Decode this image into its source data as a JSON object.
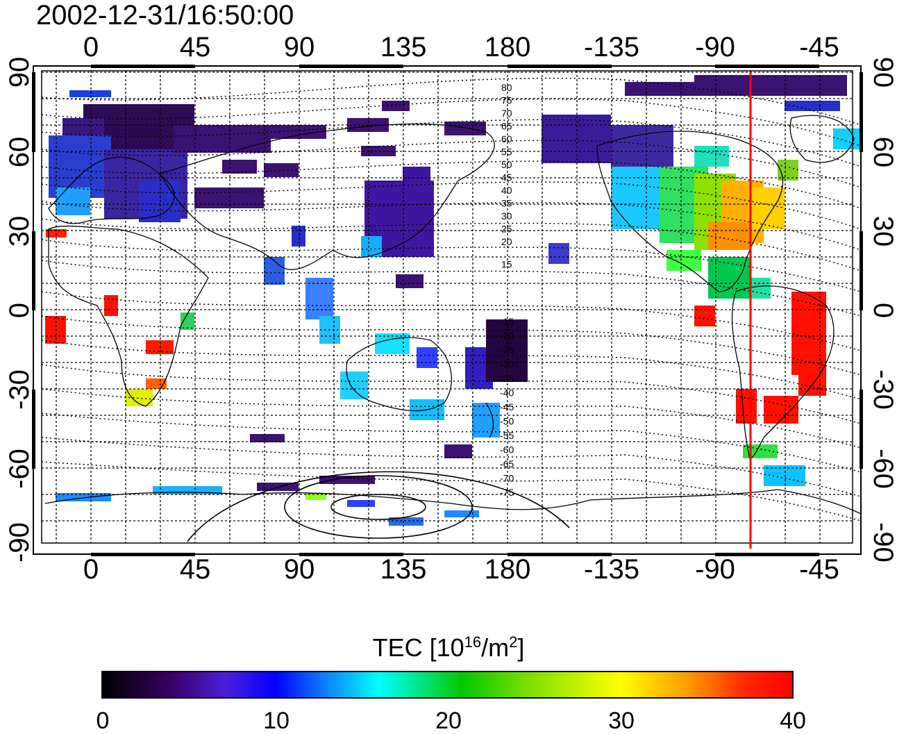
{
  "timestamp": "2002-12-31/16:50:00",
  "top_ticks": [
    "0",
    "45",
    "90",
    "135",
    "180",
    "-135",
    "-90",
    "-45"
  ],
  "bottom_ticks": [
    "0",
    "45",
    "90",
    "135",
    "180",
    "-135",
    "-90",
    "-45"
  ],
  "left_ticks": [
    "90",
    "60",
    "30",
    "0",
    "-30",
    "-60",
    "-90"
  ],
  "right_ticks": [
    "90",
    "60",
    "30",
    "0",
    "-30",
    "-60",
    "-90"
  ],
  "contour_labels_north": [
    "80",
    "75",
    "70",
    "65",
    "60",
    "55",
    "50",
    "45",
    "40",
    "35",
    "30",
    "25",
    "20",
    "15"
  ],
  "contour_labels_south": [
    "-15",
    "-20",
    "-25",
    "-30",
    "-35",
    "-40",
    "-45",
    "-50",
    "-55",
    "-60",
    "-65",
    "-70",
    "-75"
  ],
  "colorbar": {
    "title_prefix": "TEC  [10",
    "title_exp1": "16",
    "title_mid": "/m",
    "title_exp2": "2",
    "title_suffix": "]",
    "min": 0,
    "max": 40,
    "tick_labels": [
      "0",
      "10",
      "20",
      "30",
      "40"
    ]
  },
  "marker_line": {
    "longitude": -75,
    "color": "#ff0000"
  },
  "colors": {
    "frame": "#000000",
    "grid": "#000000",
    "marker": "#ff0000"
  }
}
